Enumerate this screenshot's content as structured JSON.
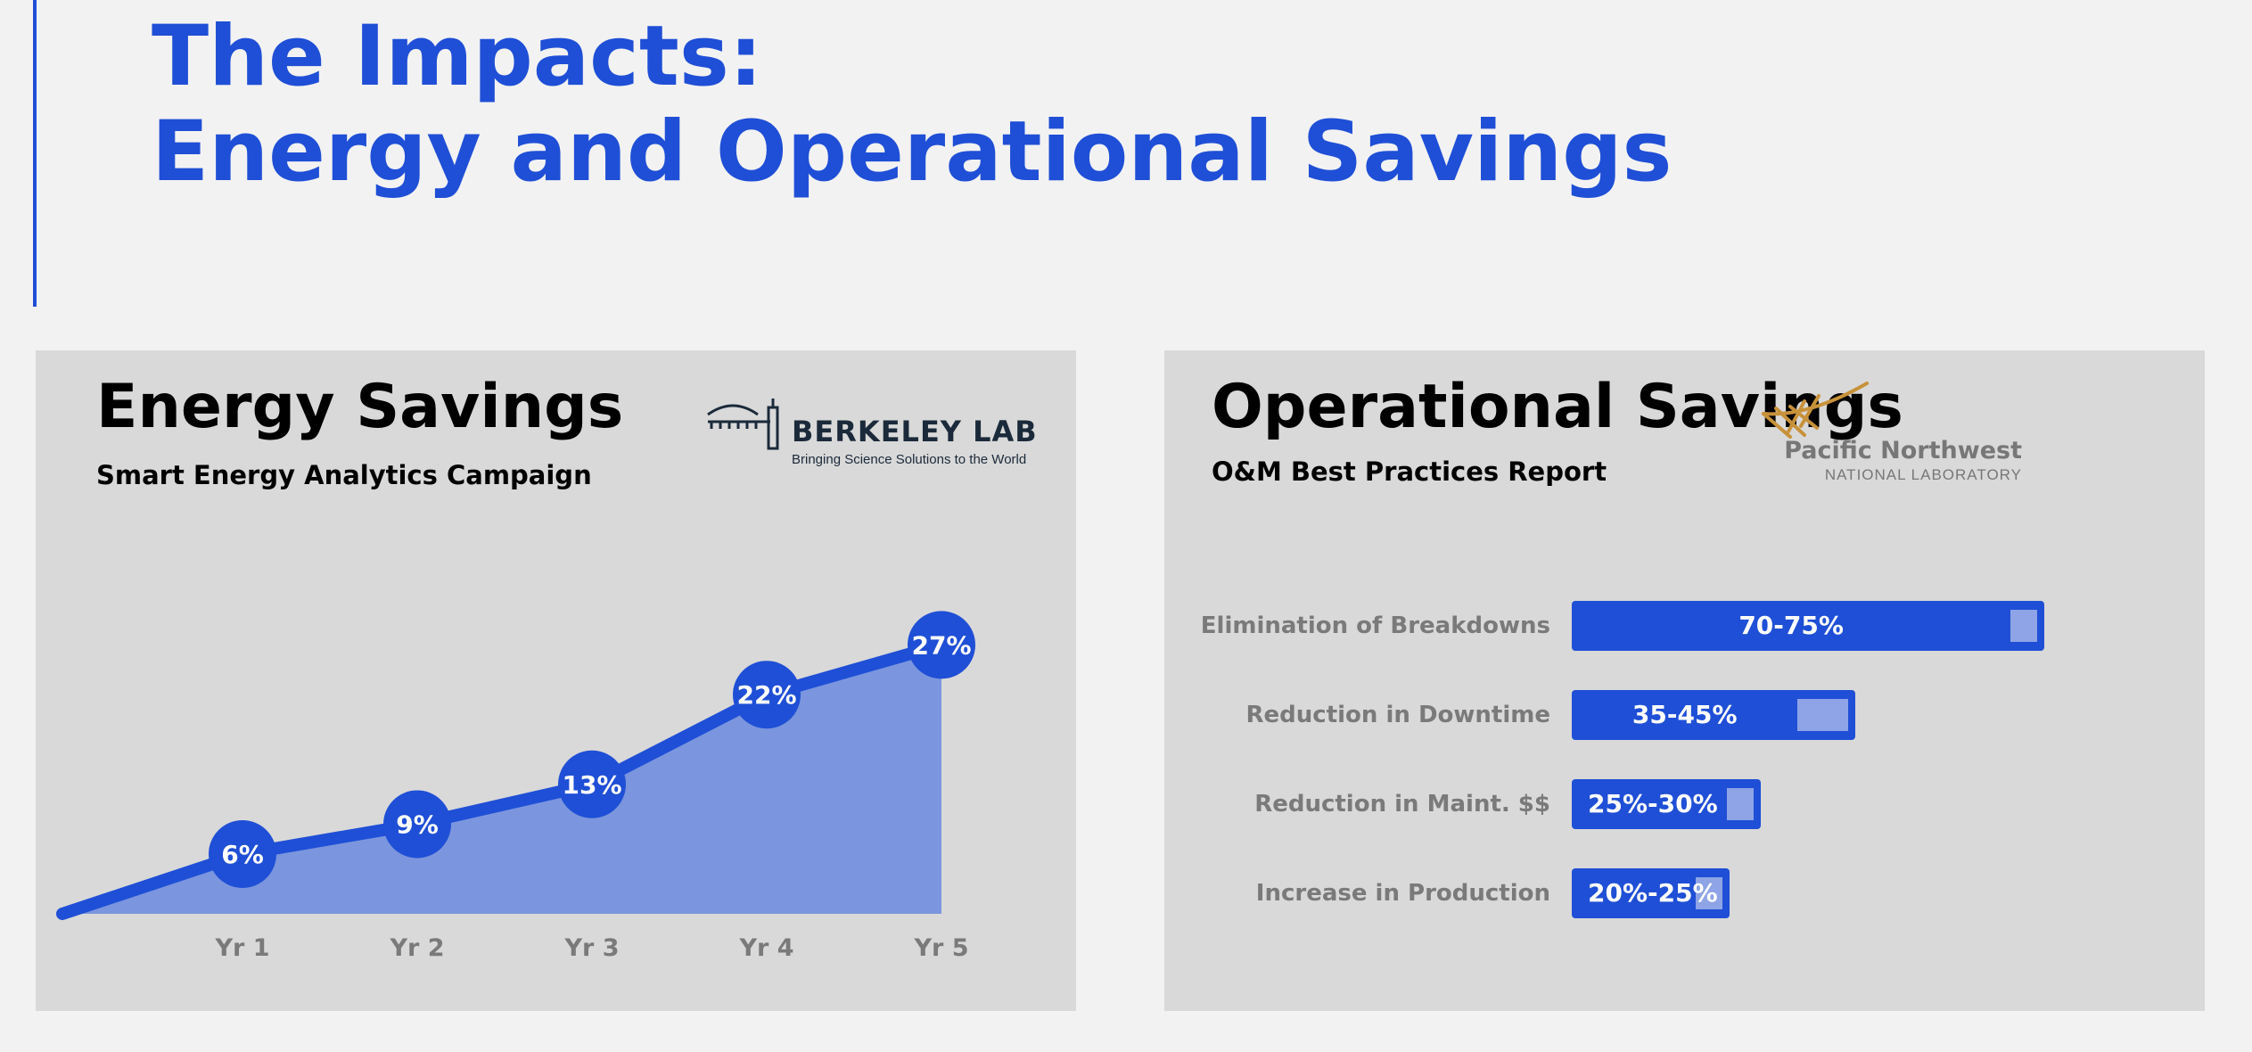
{
  "slide": {
    "title_line1": "The Impacts:",
    "title_line2": "Energy and Operational Savings",
    "accent_color": "#1f4fd6",
    "background_color": "#f2f2f2"
  },
  "energy_panel": {
    "title": "Energy Savings",
    "subtitle": "Smart Energy Analytics Campaign",
    "logo": {
      "name": "BERKELEY LAB",
      "tagline": "Bringing Science Solutions to the World",
      "icon": "berkeley-lab-building-icon"
    }
  },
  "operational_panel": {
    "title": "Operational Savings",
    "subtitle": "O&M Best Practices Report",
    "logo": {
      "name": "Pacific Northwest",
      "subname": "NATIONAL LABORATORY",
      "icon": "pnnl-swoosh-icon",
      "color": "#c8923a"
    }
  },
  "chart_data": [
    {
      "type": "area",
      "categories": [
        "Yr 1",
        "Yr 2",
        "Yr 3",
        "Yr 4",
        "Yr 5"
      ],
      "values": [
        6,
        9,
        13,
        22,
        27
      ],
      "labels": [
        "6%",
        "9%",
        "13%",
        "22%",
        "27%"
      ],
      "origin_value": 0,
      "line_color": "#1f4fd6",
      "fill_color": "#7b96de"
    },
    {
      "type": "bar",
      "orientation": "horizontal",
      "categories": [
        "Elimination of Breakdowns",
        "Reduction in Downtime",
        "Reduction in Maint. $$",
        "Increase in Production"
      ],
      "ranges": [
        [
          70,
          75
        ],
        [
          35,
          45
        ],
        [
          25,
          30
        ],
        [
          20,
          25
        ]
      ],
      "labels": [
        "70-75%",
        "35-45%",
        "25%-30%",
        "20%-25%"
      ],
      "bar_color": "#1f4fd6",
      "range_color": "#8ea4e6"
    }
  ]
}
